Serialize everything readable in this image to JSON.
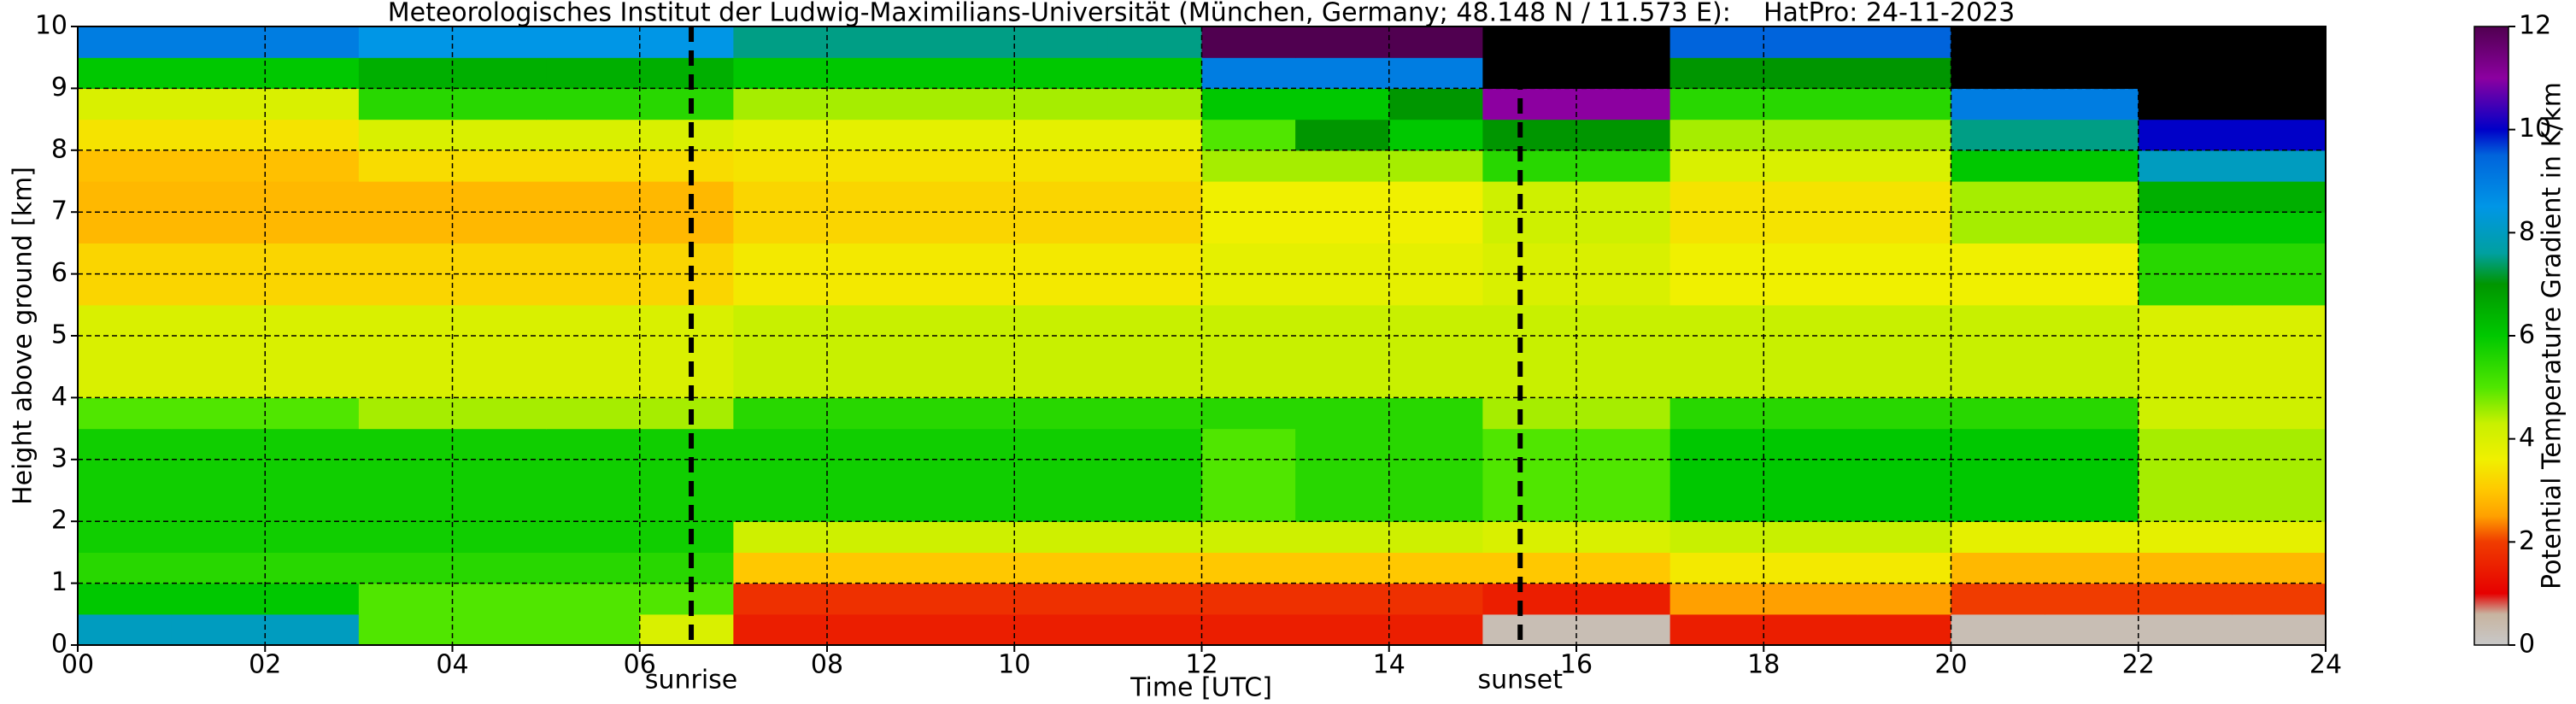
{
  "chart_data": {
    "type": "heatmap",
    "title": "Meteorologisches Institut der Ludwig-Maximilians-Universität (München, Germany; 48.148 N / 11.573 E):    HatPro: 24-11-2023",
    "x_label": "Time [UTC]",
    "y_label": "Height above ground [km]",
    "colorbar_label": "Potential Temperature Gradient in K/km",
    "x": [
      0.5,
      1.5,
      2.5,
      3.5,
      4.5,
      5.5,
      6.5,
      7.5,
      8.5,
      9.5,
      10.5,
      11.5,
      12.5,
      13.5,
      14.5,
      15.5,
      16.5,
      17.5,
      18.5,
      19.5,
      20.5,
      21.5,
      22.5,
      23.5
    ],
    "y": [
      0.25,
      0.75,
      1.25,
      1.75,
      2.25,
      2.75,
      3.25,
      3.75,
      4.25,
      4.75,
      5.25,
      5.75,
      6.25,
      6.75,
      7.25,
      7.75,
      8.25,
      8.75,
      9.25,
      9.75
    ],
    "z": [
      [
        8,
        8,
        8,
        5,
        5,
        5,
        4,
        1.5,
        1.5,
        1.5,
        1.5,
        1.5,
        1.5,
        1.5,
        1.5,
        0.3,
        0.3,
        1.5,
        1.5,
        1.5,
        0.3,
        0.3,
        0.3,
        0.3
      ],
      [
        6,
        6,
        6,
        5,
        5,
        5,
        5,
        1.8,
        1.8,
        1.8,
        1.8,
        1.8,
        1.8,
        1.8,
        1.8,
        1.5,
        1.5,
        2.5,
        2.5,
        2.5,
        2,
        2,
        2,
        2
      ],
      [
        5.5,
        5.5,
        5.5,
        5.5,
        5.5,
        5.5,
        5.5,
        3,
        3,
        3,
        3,
        3,
        3,
        3,
        3,
        3,
        3,
        3.5,
        3.5,
        3.5,
        2.8,
        2.8,
        2.8,
        2.8
      ],
      [
        5.8,
        5.8,
        5.8,
        5.8,
        5.8,
        5.8,
        5.8,
        4.2,
        4.2,
        4.2,
        4.2,
        4.2,
        4.2,
        4.2,
        4.2,
        4,
        4,
        4.3,
        4.3,
        4.3,
        3.8,
        3.8,
        3.8,
        3.8
      ],
      [
        5.8,
        5.8,
        5.8,
        5.8,
        5.8,
        5.8,
        5.8,
        5.8,
        5.8,
        5.8,
        5.8,
        5.8,
        5,
        5.5,
        5.5,
        5,
        5,
        6,
        6,
        6,
        6,
        6,
        4.5,
        4.5
      ],
      [
        5.8,
        5.8,
        5.8,
        5.8,
        5.8,
        5.8,
        5.8,
        5.8,
        5.8,
        5.8,
        5.8,
        5.8,
        5,
        5.5,
        5.5,
        5,
        5,
        6,
        6,
        6,
        6,
        6,
        4.5,
        4.5
      ],
      [
        5.8,
        5.8,
        5.8,
        5.8,
        5.8,
        5.8,
        5.8,
        5.8,
        5.8,
        5.8,
        5.8,
        5.8,
        5,
        5.5,
        5.5,
        5,
        5,
        6,
        6,
        6,
        6,
        6,
        4.5,
        4.5
      ],
      [
        5,
        5,
        5,
        4.5,
        4.5,
        4.5,
        4.5,
        5.5,
        5.5,
        5.5,
        5.5,
        5.5,
        5.5,
        5.5,
        5.5,
        4.5,
        4.5,
        5.5,
        5.5,
        5.5,
        5.5,
        5.5,
        4.2,
        4.2
      ],
      [
        4,
        4,
        4,
        4,
        4,
        4,
        4,
        4.3,
        4.3,
        4.3,
        4.3,
        4.3,
        4.3,
        4.3,
        4.3,
        4.3,
        4.3,
        4.3,
        4.3,
        4.3,
        4.3,
        4.3,
        4,
        4
      ],
      [
        4,
        4,
        4,
        4,
        4,
        4,
        4,
        4.3,
        4.3,
        4.3,
        4.3,
        4.3,
        4.3,
        4.3,
        4.3,
        4.3,
        4.3,
        4.3,
        4.3,
        4.3,
        4.3,
        4.3,
        4,
        4
      ],
      [
        4,
        4,
        4,
        4,
        4,
        4,
        4,
        4.3,
        4.3,
        4.3,
        4.3,
        4.3,
        4.3,
        4.3,
        4.3,
        4.3,
        4.3,
        4.3,
        4.3,
        4.3,
        4.3,
        4.3,
        4,
        4
      ],
      [
        3.2,
        3.2,
        3.2,
        3.2,
        3.2,
        3.2,
        3.2,
        3.5,
        3.5,
        3.5,
        3.5,
        3.5,
        3.8,
        3.8,
        3.8,
        4,
        4,
        3.6,
        3.6,
        3.6,
        3.6,
        3.6,
        5.5,
        5.5
      ],
      [
        3.2,
        3.2,
        3.2,
        3.2,
        3.2,
        3.2,
        3.2,
        3.5,
        3.5,
        3.5,
        3.5,
        3.5,
        3.8,
        3.8,
        3.8,
        4,
        4,
        3.6,
        3.6,
        3.6,
        3.6,
        3.6,
        5.5,
        5.5
      ],
      [
        2.8,
        2.8,
        2.8,
        2.8,
        2.8,
        2.8,
        2.8,
        3.2,
        3.2,
        3.2,
        3.2,
        3.2,
        3.6,
        3.6,
        3.6,
        4.2,
        4.2,
        3.4,
        3.4,
        3.4,
        4.5,
        4.5,
        6,
        6
      ],
      [
        2.8,
        2.8,
        2.8,
        2.8,
        2.8,
        2.8,
        2.8,
        3.2,
        3.2,
        3.2,
        3.2,
        3.2,
        3.6,
        3.6,
        3.6,
        4.2,
        4.2,
        3.4,
        3.4,
        3.4,
        4.5,
        4.5,
        6.5,
        6.5
      ],
      [
        2.9,
        2.9,
        2.9,
        3.3,
        3.3,
        3.3,
        3.3,
        3.4,
        3.4,
        3.4,
        3.4,
        3.4,
        4.5,
        4.5,
        4.5,
        5.5,
        5.5,
        4,
        4,
        4,
        6,
        6,
        8,
        8
      ],
      [
        3.4,
        3.4,
        3.4,
        4,
        4,
        4,
        4,
        3.8,
        3.8,
        3.8,
        3.8,
        3.8,
        5,
        7,
        6,
        7,
        7,
        4.5,
        4.5,
        4.5,
        7.5,
        7.5,
        10,
        10
      ],
      [
        4,
        4,
        4,
        5.5,
        5.5,
        5.5,
        5.5,
        4.5,
        4.5,
        4.5,
        4.5,
        4.5,
        6,
        6,
        7,
        11,
        11,
        5.5,
        5.5,
        5.5,
        9,
        9,
        13,
        13
      ],
      [
        6,
        6,
        6,
        6.5,
        6.5,
        6.5,
        6.5,
        6,
        6,
        6,
        6,
        6,
        9,
        9,
        9,
        13,
        13,
        7,
        7,
        7,
        13,
        13,
        13,
        13
      ],
      [
        9,
        9,
        9,
        8.5,
        8.5,
        8.5,
        8.5,
        7.5,
        7.5,
        7.5,
        7.5,
        7.5,
        12,
        12,
        12,
        13,
        13,
        9.5,
        9.5,
        9.5,
        13,
        13,
        13,
        13
      ]
    ],
    "xlim": [
      0,
      24
    ],
    "ylim": [
      0,
      10
    ],
    "xticks": [
      {
        "value": 0,
        "label": "00"
      },
      {
        "value": 2,
        "label": "02"
      },
      {
        "value": 4,
        "label": "04"
      },
      {
        "value": 6,
        "label": "06"
      },
      {
        "value": 8,
        "label": "08"
      },
      {
        "value": 10,
        "label": "10"
      },
      {
        "value": 12,
        "label": "12"
      },
      {
        "value": 14,
        "label": "14"
      },
      {
        "value": 16,
        "label": "16"
      },
      {
        "value": 18,
        "label": "18"
      },
      {
        "value": 20,
        "label": "20"
      },
      {
        "value": 22,
        "label": "22"
      },
      {
        "value": 24,
        "label": "24"
      }
    ],
    "yticks": [
      0,
      1,
      2,
      3,
      4,
      5,
      6,
      7,
      8,
      9,
      10
    ],
    "zlim": [
      0,
      12
    ],
    "zticks": [
      0,
      2,
      4,
      6,
      8,
      10,
      12
    ],
    "colorscale": [
      [
        0,
        "#c8c8c8"
      ],
      [
        0.6,
        "#c8b4a0"
      ],
      [
        1,
        "#e60000"
      ],
      [
        2,
        "#f03c00"
      ],
      [
        2.5,
        "#ffa000"
      ],
      [
        3,
        "#ffc800"
      ],
      [
        3.6,
        "#f0f000"
      ],
      [
        4.3,
        "#c8f000"
      ],
      [
        5,
        "#50e600"
      ],
      [
        6,
        "#00c800"
      ],
      [
        7,
        "#009600"
      ],
      [
        7.6,
        "#00a0a0"
      ],
      [
        8.5,
        "#0096e6"
      ],
      [
        9.5,
        "#0064dc"
      ],
      [
        10,
        "#0000c8"
      ],
      [
        11,
        "#8c00a0"
      ],
      [
        12,
        "#500050"
      ]
    ],
    "over_color": "#000000",
    "grid": true,
    "annotations": [
      {
        "text": "sunrise",
        "x": 6.55
      },
      {
        "text": "sunset",
        "x": 15.4
      }
    ]
  }
}
